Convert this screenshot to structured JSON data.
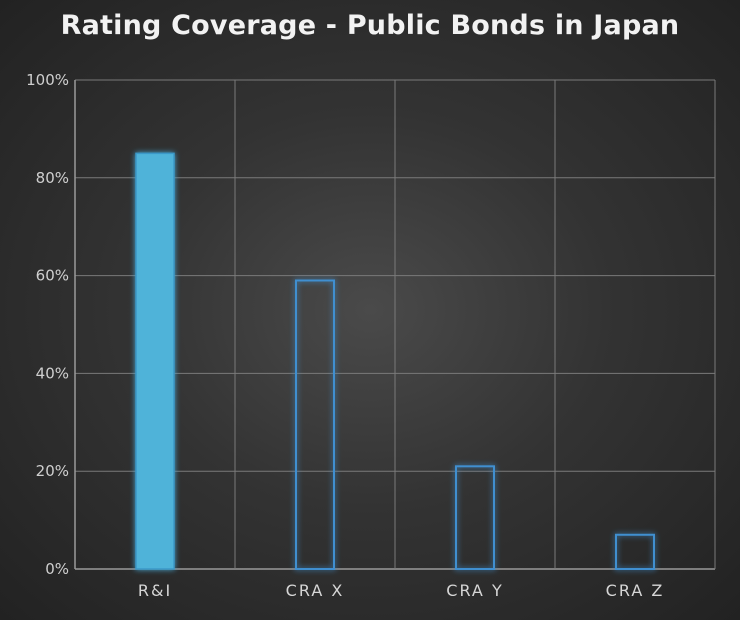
{
  "chart_data": {
    "type": "bar",
    "title": "Rating Coverage - Public Bonds in Japan",
    "categories": [
      "R&I",
      "CRA X",
      "CRA Y",
      "CRA Z"
    ],
    "values": [
      85,
      59,
      21,
      7
    ],
    "ylim": [
      0,
      100
    ],
    "yticks": [
      0,
      20,
      40,
      60,
      80,
      100
    ],
    "ytick_labels": [
      "0%",
      "20%",
      "40%",
      "60%",
      "80%",
      "100%"
    ],
    "xlabel": "",
    "ylabel": "",
    "grid": true,
    "bar_styles": [
      "filled",
      "outline",
      "outline",
      "outline"
    ],
    "colors": {
      "filled_bar": "#4fb3d9",
      "outline_bar": "#3f8fd0",
      "grid": "#7a7a7a",
      "axis": "#9a9a9a"
    }
  }
}
